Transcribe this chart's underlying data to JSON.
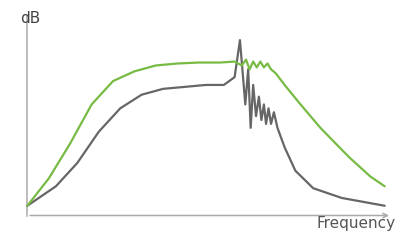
{
  "background_color": "#ffffff",
  "axis_color": "#aaaaaa",
  "xlabel": "Frequency",
  "ylabel": "dB",
  "xlabel_fontsize": 11,
  "ylabel_fontsize": 11,
  "gray_color": "#666666",
  "green_color": "#77bb44",
  "linewidth": 1.6,
  "figsize": [
    4.15,
    2.33
  ],
  "dpi": 100,
  "gray_x": [
    0.0,
    0.08,
    0.14,
    0.2,
    0.26,
    0.32,
    0.38,
    0.44,
    0.5,
    0.55,
    0.58,
    0.595,
    0.61,
    0.618,
    0.625,
    0.632,
    0.64,
    0.648,
    0.655,
    0.662,
    0.668,
    0.675,
    0.682,
    0.69,
    0.7,
    0.72,
    0.75,
    0.8,
    0.88,
    1.0
  ],
  "gray_y": [
    0.0,
    0.1,
    0.22,
    0.38,
    0.5,
    0.57,
    0.6,
    0.61,
    0.62,
    0.62,
    0.66,
    0.85,
    0.52,
    0.7,
    0.4,
    0.62,
    0.46,
    0.56,
    0.44,
    0.52,
    0.42,
    0.5,
    0.42,
    0.48,
    0.4,
    0.3,
    0.18,
    0.09,
    0.04,
    0.0
  ],
  "green_x": [
    0.0,
    0.06,
    0.12,
    0.18,
    0.24,
    0.3,
    0.36,
    0.42,
    0.48,
    0.54,
    0.58,
    0.6,
    0.612,
    0.622,
    0.632,
    0.642,
    0.652,
    0.662,
    0.672,
    0.682,
    0.695,
    0.72,
    0.76,
    0.82,
    0.9,
    0.96,
    1.0
  ],
  "green_y": [
    0.0,
    0.14,
    0.32,
    0.52,
    0.64,
    0.69,
    0.72,
    0.73,
    0.735,
    0.735,
    0.74,
    0.72,
    0.75,
    0.7,
    0.74,
    0.71,
    0.74,
    0.71,
    0.73,
    0.7,
    0.68,
    0.62,
    0.53,
    0.4,
    0.25,
    0.15,
    0.1
  ]
}
